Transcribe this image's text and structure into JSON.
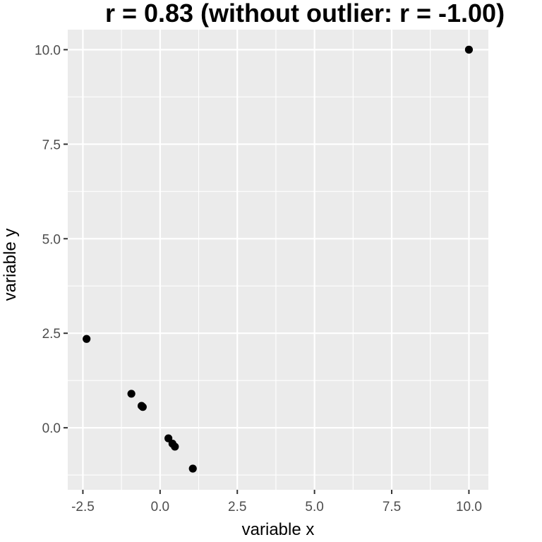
{
  "chart_data": {
    "type": "scatter",
    "title": "r = 0.83 (without outlier: r = -1.00)",
    "xlabel": "variable x",
    "ylabel": "variable y",
    "xlim": [
      -2.99,
      10.63
    ],
    "ylim": [
      -1.64,
      10.53
    ],
    "x_ticks": [
      -2.5,
      0.0,
      2.5,
      5.0,
      7.5,
      10.0
    ],
    "y_ticks": [
      0.0,
      2.5,
      5.0,
      7.5,
      10.0
    ],
    "x_tick_labels": [
      "-2.5",
      "0.0",
      "2.5",
      "5.0",
      "7.5",
      "10.0"
    ],
    "y_tick_labels": [
      "0.0",
      "2.5",
      "5.0",
      "7.5",
      "10.0"
    ],
    "grid": true,
    "points": [
      {
        "x": -2.38,
        "y": 2.35
      },
      {
        "x": -0.93,
        "y": 0.9
      },
      {
        "x": -0.6,
        "y": 0.58
      },
      {
        "x": -0.56,
        "y": 0.55
      },
      {
        "x": 0.27,
        "y": -0.28
      },
      {
        "x": 0.4,
        "y": -0.42
      },
      {
        "x": 0.48,
        "y": -0.5
      },
      {
        "x": 1.06,
        "y": -1.08
      },
      {
        "x": 10.0,
        "y": 10.0
      }
    ],
    "colors": {
      "panel": "#EBEBEB",
      "grid": "#FFFFFF",
      "point": "#000000",
      "tick_text": "#4D4D4D",
      "tick_mark": "#333333"
    }
  }
}
